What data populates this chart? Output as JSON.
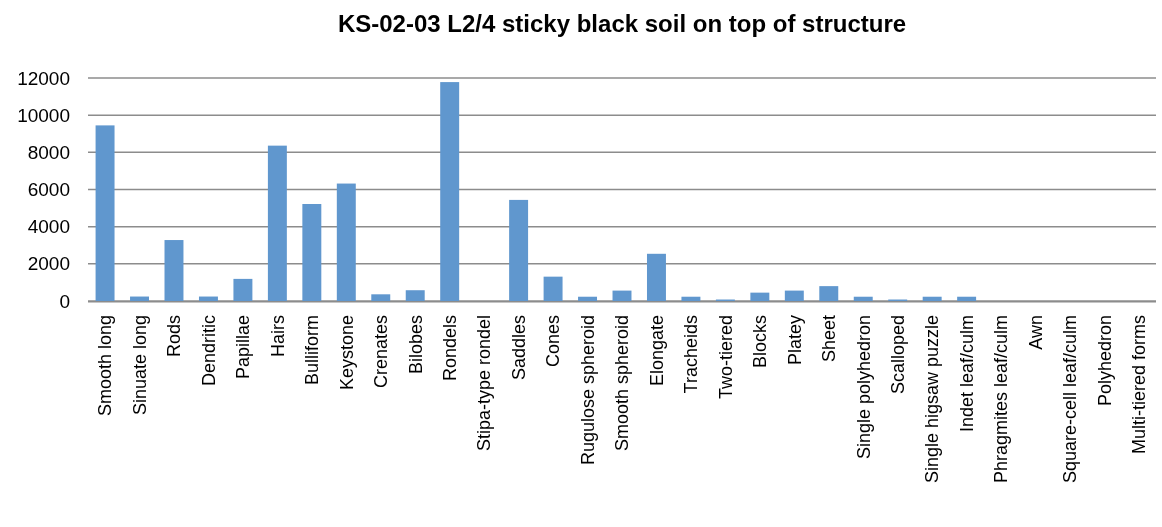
{
  "chart_data": {
    "type": "bar",
    "title": "KS-02-03 L2/4 sticky black soil on top of structure",
    "categories": [
      "Smooth long",
      "Sinuate long",
      "Rods",
      "Dendritic",
      "Papillae",
      "Hairs",
      "Bulliform",
      "Keystone",
      "Crenates",
      "Bilobes",
      "Rondels",
      "Stipa-type rondel",
      "Saddles",
      "Cones",
      "Rugulose spheroid",
      "Smooth spheroid",
      "Elongate",
      "Tracheids",
      "Two-tiered",
      "Blocks",
      "Platey",
      "Sheet",
      "Single polyhedron",
      "Scalloped",
      "Single higsaw puzzle",
      "Indet leaf/culm",
      "Phragmites leaf/culm",
      "Awn",
      "Square-cell leaf/culm",
      "Polyhedron",
      "Multi-tiered forms"
    ],
    "values": [
      9450,
      240,
      3280,
      240,
      1190,
      8360,
      5220,
      6320,
      360,
      580,
      11780,
      0,
      5440,
      1310,
      230,
      560,
      2540,
      230,
      80,
      450,
      560,
      800,
      230,
      80,
      230,
      230,
      0,
      0,
      0,
      0,
      0
    ],
    "color": "#6097ce",
    "ylim": [
      0,
      12000
    ],
    "yticks": [
      0,
      2000,
      4000,
      6000,
      8000,
      10000,
      12000
    ],
    "grid": "y"
  }
}
